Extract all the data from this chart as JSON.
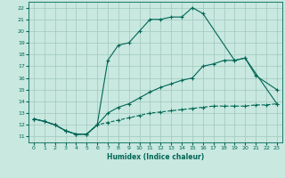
{
  "xlabel": "Humidex (Indice chaleur)",
  "xlim": [
    -0.5,
    23.5
  ],
  "ylim": [
    10.5,
    22.5
  ],
  "yticks": [
    11,
    12,
    13,
    14,
    15,
    16,
    17,
    18,
    19,
    20,
    21,
    22
  ],
  "xticks": [
    0,
    1,
    2,
    3,
    4,
    5,
    6,
    7,
    8,
    9,
    10,
    11,
    12,
    13,
    14,
    15,
    16,
    17,
    18,
    19,
    20,
    21,
    22,
    23
  ],
  "bg_color": "#c8e8e0",
  "grid_color": "#a0c8bc",
  "line_color": "#006655",
  "line1_x": [
    0,
    1,
    2,
    3,
    4,
    5,
    6,
    7,
    8,
    9,
    10,
    11,
    12,
    13,
    14,
    15,
    16,
    19,
    20,
    21,
    23
  ],
  "line1_y": [
    12.5,
    12.3,
    12.0,
    11.5,
    11.2,
    11.2,
    12.0,
    17.5,
    18.8,
    19.0,
    20.0,
    21.0,
    21.0,
    21.2,
    21.2,
    22.0,
    21.5,
    17.5,
    17.7,
    16.2,
    15.0
  ],
  "line2_x": [
    0,
    1,
    2,
    3,
    4,
    5,
    6,
    7,
    8,
    9,
    10,
    11,
    12,
    13,
    14,
    15,
    16,
    17,
    18,
    19,
    20,
    23
  ],
  "line2_y": [
    12.5,
    12.3,
    12.0,
    11.5,
    11.2,
    11.2,
    12.0,
    13.0,
    13.5,
    13.8,
    14.3,
    14.8,
    15.2,
    15.5,
    15.8,
    16.0,
    17.0,
    17.2,
    17.5,
    17.5,
    17.7,
    13.8
  ],
  "line3_x": [
    0,
    1,
    2,
    3,
    4,
    5,
    6,
    7,
    8,
    9,
    10,
    11,
    12,
    13,
    14,
    15,
    16,
    17,
    18,
    19,
    20,
    21,
    22,
    23
  ],
  "line3_y": [
    12.5,
    12.3,
    12.0,
    11.5,
    11.2,
    11.2,
    12.0,
    12.2,
    12.4,
    12.6,
    12.8,
    13.0,
    13.1,
    13.2,
    13.3,
    13.4,
    13.5,
    13.6,
    13.6,
    13.6,
    13.6,
    13.7,
    13.7,
    13.8
  ]
}
